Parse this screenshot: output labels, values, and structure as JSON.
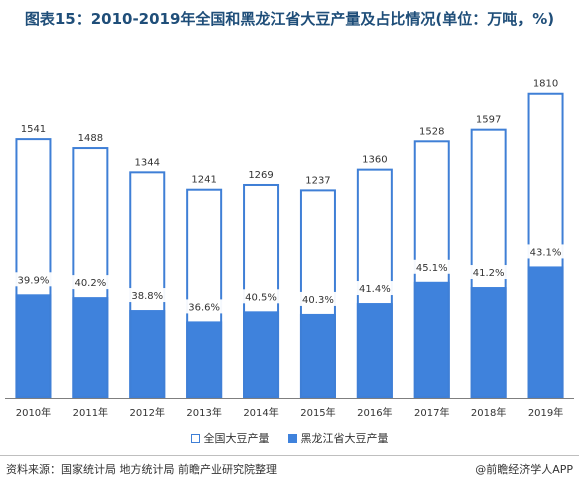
{
  "title": "图表15：2010-2019年全国和黑龙江省大豆产量及占比情况(单位：万吨，%)",
  "colors": {
    "total_outline": "#3f7fd6",
    "heilongjiang_fill": "#3f82dc",
    "label_bg": "#ffffff"
  },
  "chart_data": {
    "type": "bar",
    "categories": [
      "2010年",
      "2011年",
      "2012年",
      "2013年",
      "2014年",
      "2015年",
      "2016年",
      "2017年",
      "2018年",
      "2019年"
    ],
    "series": [
      {
        "name": "全国大豆产量",
        "values": [
          1541,
          1488,
          1344,
          1241,
          1269,
          1237,
          1360,
          1528,
          1597,
          1810
        ]
      },
      {
        "name": "黑龙江省大豆产量",
        "share_percent": [
          39.9,
          40.2,
          38.8,
          36.6,
          40.5,
          40.3,
          41.4,
          45.1,
          41.2,
          43.1
        ]
      }
    ],
    "value_labels": [
      "1541",
      "1488",
      "1344",
      "1241",
      "1269",
      "1237",
      "1360",
      "1528",
      "1597",
      "1810"
    ],
    "share_labels": [
      "39.9%",
      "40.2%",
      "38.8%",
      "36.6%",
      "40.5%",
      "40.3%",
      "41.4%",
      "45.1%",
      "41.2%",
      "43.1%"
    ],
    "ylim": [
      0,
      1850
    ],
    "grid": false,
    "legend_position": "bottom"
  },
  "legend": {
    "total": "全国大豆产量",
    "heilongjiang": "黑龙江省大豆产量"
  },
  "footer": {
    "source": "资料来源：国家统计局 地方统计局 前瞻产业研究院整理",
    "brand": "@前瞻经济学人APP"
  }
}
